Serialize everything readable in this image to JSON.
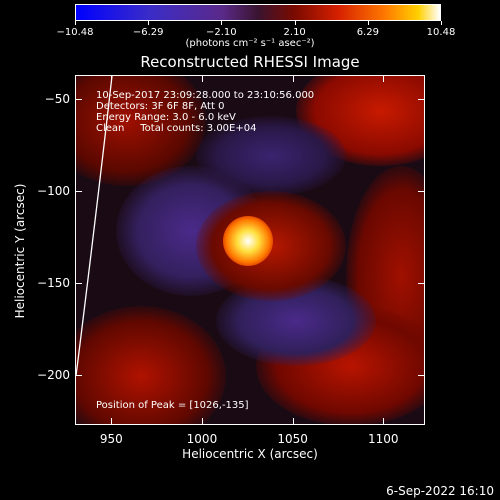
{
  "colorbar": {
    "ticks": [
      "−10.48",
      "−6.29",
      "−2.10",
      "2.10",
      "6.29",
      "10.48"
    ],
    "unit": "(photons cm⁻² s⁻¹ asec⁻²)"
  },
  "title": "Reconstructed RHESSI Image",
  "info": {
    "line1": "10-Sep-2017 23:09:28.000 to 23:10:56.000",
    "line2": "Detectors: 3F 6F 8F, Att 0",
    "line3": "Energy Range: 3.0 - 6.0 keV",
    "line4": "Clean     Total counts: 3.00E+04"
  },
  "peak_label": "Position of Peak = [1026,-135]",
  "stamp": "6-Sep-2022 16:10",
  "chart_data": {
    "type": "heatmap",
    "title": "Reconstructed RHESSI Image",
    "xlabel": "Heliocentric X (arcsec)",
    "ylabel": "Heliocentric Y (arcsec)",
    "xlim": [
      930,
      1123
    ],
    "ylim": [
      -227,
      -37
    ],
    "xticks": [
      "950",
      "1000",
      "1050",
      "1100"
    ],
    "yticks": [
      "−50",
      "−100",
      "−150",
      "−200"
    ],
    "colorbar_range": [
      -10.48,
      10.48
    ],
    "peak": {
      "x": 1026,
      "y": -135
    }
  }
}
